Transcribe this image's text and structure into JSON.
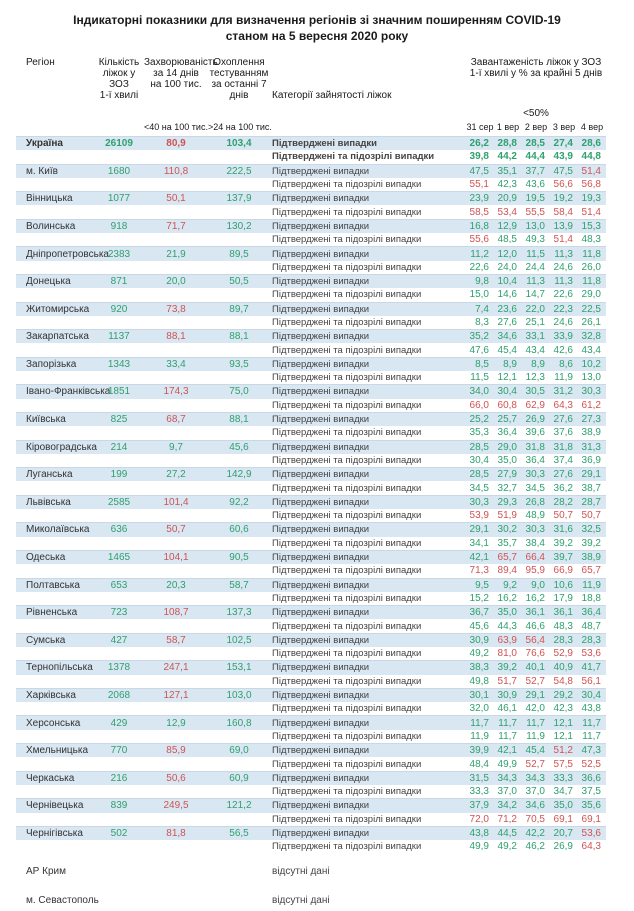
{
  "title": {
    "line1": "Індикаторні показники для визначення регіонів зі значним поширенням COVID-19",
    "line2": "станом на 5 вересня 2020 року"
  },
  "columns": {
    "region": "Регіон",
    "beds": "Кількість\nліжок у ЗОЗ\n1-ї хвилі",
    "incidence": "Захворюваність\nза 14 днів\nна 100 тис.",
    "testing": "Охоплення\nтестуванням\nза останні 7 днів",
    "category": "Категорії зайнятості ліжок",
    "occupancy": "Завантаженість ліжок у ЗОЗ\n1-ї хвилі у % за крайні 5 днів",
    "occupancy_threshold": "<50%",
    "incidence_threshold": "<40 на 100 тис.",
    "testing_threshold": ">24 на 100 тис."
  },
  "dates": [
    "31 сер",
    "1 вер",
    "2 вер",
    "3 вер",
    "4 вер"
  ],
  "category_labels": {
    "confirmed": "Підтверджені випадки",
    "confirmed_suspected": "Підтверджені та підозрілі випадки",
    "no_data": "відсутні дані"
  },
  "colors": {
    "good_green": "#2fa06e",
    "bad_red": "#cf5353",
    "row_blue": "#d9e7f2"
  },
  "regions": [
    {
      "name": "Україна",
      "bold": true,
      "beds": "26109",
      "inc": "80,9",
      "inc_c": "r",
      "test": "103,4",
      "c": [
        "26,2",
        "28,8",
        "28,5",
        "27,4",
        "28,6"
      ],
      "cc": "ggggg",
      "s": [
        "39,8",
        "44,2",
        "44,4",
        "43,9",
        "44,8"
      ],
      "sc": "ggggg"
    },
    {
      "name": "м. Київ",
      "beds": "1680",
      "inc": "110,8",
      "inc_c": "r",
      "test": "222,5",
      "c": [
        "47,5",
        "35,1",
        "37,7",
        "47,5",
        "51,4"
      ],
      "cc": "ggggr",
      "s": [
        "55,1",
        "42,3",
        "43,6",
        "56,6",
        "56,8"
      ],
      "sc": "rggrr"
    },
    {
      "name": "Вінницька",
      "beds": "1077",
      "inc": "50,1",
      "inc_c": "r",
      "test": "137,9",
      "c": [
        "23,9",
        "20,9",
        "19,5",
        "19,2",
        "19,3"
      ],
      "cc": "ggggg",
      "s": [
        "58,5",
        "53,4",
        "55,5",
        "58,4",
        "51,4"
      ],
      "sc": "rrrrr"
    },
    {
      "name": "Волинська",
      "beds": "918",
      "inc": "71,7",
      "inc_c": "r",
      "test": "130,2",
      "c": [
        "16,8",
        "12,9",
        "13,0",
        "13,9",
        "15,3"
      ],
      "cc": "ggggg",
      "s": [
        "55,6",
        "48,5",
        "49,3",
        "51,4",
        "48,3"
      ],
      "sc": "rggrg"
    },
    {
      "name": "Дніпропетровська",
      "beds": "2383",
      "inc": "21,9",
      "inc_c": "g",
      "test": "89,5",
      "c": [
        "11,2",
        "12,0",
        "11,5",
        "11,3",
        "11,8"
      ],
      "cc": "ggggg",
      "s": [
        "22,6",
        "24,0",
        "24,4",
        "24,6",
        "26,0"
      ],
      "sc": "ggggg"
    },
    {
      "name": "Донецька",
      "beds": "871",
      "inc": "20,0",
      "inc_c": "g",
      "test": "50,5",
      "c": [
        "9,8",
        "10,4",
        "11,3",
        "11,3",
        "11,8"
      ],
      "cc": "ggggg",
      "s": [
        "15,0",
        "14,6",
        "14,7",
        "22,6",
        "29,0"
      ],
      "sc": "ggggg"
    },
    {
      "name": "Житомирська",
      "beds": "920",
      "inc": "73,8",
      "inc_c": "r",
      "test": "89,7",
      "c": [
        "7,4",
        "23,6",
        "22,0",
        "22,3",
        "22,5"
      ],
      "cc": "ggggg",
      "s": [
        "8,3",
        "27,6",
        "25,1",
        "24,6",
        "26,1"
      ],
      "sc": "ggggg"
    },
    {
      "name": "Закарпатська",
      "beds": "1137",
      "inc": "88,1",
      "inc_c": "r",
      "test": "88,1",
      "c": [
        "35,2",
        "34,6",
        "33,1",
        "33,9",
        "32,8"
      ],
      "cc": "ggggg",
      "s": [
        "47,6",
        "45,4",
        "43,4",
        "42,6",
        "43,4"
      ],
      "sc": "ggggg"
    },
    {
      "name": "Запорізька",
      "beds": "1343",
      "inc": "33,4",
      "inc_c": "g",
      "test": "93,5",
      "c": [
        "8,5",
        "8,9",
        "8,9",
        "8,6",
        "10,2"
      ],
      "cc": "ggggg",
      "s": [
        "11,5",
        "12,1",
        "12,3",
        "11,9",
        "13,0"
      ],
      "sc": "ggggg"
    },
    {
      "name": "Івано-Франківська",
      "beds": "1851",
      "inc": "174,3",
      "inc_c": "r",
      "test": "75,0",
      "c": [
        "34,0",
        "30,4",
        "30,5",
        "31,2",
        "30,3"
      ],
      "cc": "ggggg",
      "s": [
        "66,0",
        "60,8",
        "62,9",
        "64,3",
        "61,2"
      ],
      "sc": "rrrrr"
    },
    {
      "name": "Київська",
      "beds": "825",
      "inc": "68,7",
      "inc_c": "r",
      "test": "88,1",
      "c": [
        "25,2",
        "25,7",
        "26,9",
        "27,6",
        "27,3"
      ],
      "cc": "ggggg",
      "s": [
        "35,3",
        "36,4",
        "39,6",
        "37,6",
        "38,9"
      ],
      "sc": "ggggg"
    },
    {
      "name": "Кіровоградська",
      "beds": "214",
      "inc": "9,7",
      "inc_c": "g",
      "test": "45,6",
      "c": [
        "28,5",
        "29,0",
        "31,8",
        "31,8",
        "31,3"
      ],
      "cc": "ggggg",
      "s": [
        "30,4",
        "35,0",
        "36,4",
        "37,4",
        "36,9"
      ],
      "sc": "ggggg"
    },
    {
      "name": "Луганська",
      "beds": "199",
      "inc": "27,2",
      "inc_c": "g",
      "test": "142,9",
      "c": [
        "28,5",
        "27,9",
        "30,3",
        "27,6",
        "29,1"
      ],
      "cc": "ggggg",
      "s": [
        "34,5",
        "32,7",
        "34,5",
        "36,2",
        "38,7"
      ],
      "sc": "ggggg"
    },
    {
      "name": "Львівська",
      "beds": "2585",
      "inc": "101,4",
      "inc_c": "r",
      "test": "92,2",
      "c": [
        "30,3",
        "29,3",
        "26,8",
        "28,2",
        "28,7"
      ],
      "cc": "ggggg",
      "s": [
        "53,9",
        "51,9",
        "48,9",
        "50,7",
        "50,7"
      ],
      "sc": "rrgrr"
    },
    {
      "name": "Миколаївська",
      "beds": "636",
      "inc": "50,7",
      "inc_c": "r",
      "test": "60,6",
      "c": [
        "29,1",
        "30,2",
        "30,3",
        "31,6",
        "32,5"
      ],
      "cc": "ggggg",
      "s": [
        "34,1",
        "35,7",
        "38,4",
        "39,2",
        "39,2"
      ],
      "sc": "ggggg"
    },
    {
      "name": "Одеська",
      "beds": "1465",
      "inc": "104,1",
      "inc_c": "r",
      "test": "90,5",
      "c": [
        "42,1",
        "65,7",
        "66,4",
        "39,7",
        "38,9"
      ],
      "cc": "grrgg",
      "s": [
        "71,3",
        "89,4",
        "95,9",
        "66,9",
        "65,7"
      ],
      "sc": "rrrrr"
    },
    {
      "name": "Полтавська",
      "beds": "653",
      "inc": "20,3",
      "inc_c": "g",
      "test": "58,7",
      "c": [
        "9,5",
        "9,2",
        "9,0",
        "10,6",
        "11,9"
      ],
      "cc": "ggggg",
      "s": [
        "15,2",
        "16,2",
        "16,2",
        "17,9",
        "18,8"
      ],
      "sc": "ggggg"
    },
    {
      "name": "Рівненська",
      "beds": "723",
      "inc": "108,7",
      "inc_c": "r",
      "test": "137,3",
      "c": [
        "36,7",
        "35,0",
        "36,1",
        "36,1",
        "36,4"
      ],
      "cc": "ggggg",
      "s": [
        "45,6",
        "44,3",
        "46,6",
        "48,3",
        "48,7"
      ],
      "sc": "ggggg"
    },
    {
      "name": "Сумська",
      "beds": "427",
      "inc": "58,7",
      "inc_c": "r",
      "test": "102,5",
      "c": [
        "30,9",
        "63,9",
        "56,4",
        "28,3",
        "28,3"
      ],
      "cc": "grrgg",
      "s": [
        "49,2",
        "81,0",
        "76,6",
        "52,9",
        "53,6"
      ],
      "sc": "grrrr"
    },
    {
      "name": "Тернопільська",
      "beds": "1378",
      "inc": "247,1",
      "inc_c": "r",
      "test": "153,1",
      "c": [
        "38,3",
        "39,2",
        "40,1",
        "40,9",
        "41,7"
      ],
      "cc": "ggggg",
      "s": [
        "49,8",
        "51,7",
        "52,7",
        "54,8",
        "56,1"
      ],
      "sc": "grrrr"
    },
    {
      "name": "Харківська",
      "beds": "2068",
      "inc": "127,1",
      "inc_c": "r",
      "test": "103,0",
      "c": [
        "30,1",
        "30,9",
        "29,1",
        "29,2",
        "30,4"
      ],
      "cc": "ggggg",
      "s": [
        "32,0",
        "46,1",
        "42,0",
        "42,3",
        "43,8"
      ],
      "sc": "ggggg"
    },
    {
      "name": "Херсонська",
      "beds": "429",
      "inc": "12,9",
      "inc_c": "g",
      "test": "160,8",
      "c": [
        "11,7",
        "11,7",
        "11,7",
        "12,1",
        "11,7"
      ],
      "cc": "ggggg",
      "s": [
        "11,9",
        "11,7",
        "11,9",
        "12,1",
        "11,7"
      ],
      "sc": "ggggg"
    },
    {
      "name": "Хмельницька",
      "beds": "770",
      "inc": "85,9",
      "inc_c": "r",
      "test": "69,0",
      "c": [
        "39,9",
        "42,1",
        "45,4",
        "51,2",
        "47,3"
      ],
      "cc": "gggrg",
      "s": [
        "48,4",
        "49,9",
        "52,7",
        "57,5",
        "52,5"
      ],
      "sc": "ggrrr"
    },
    {
      "name": "Черкаська",
      "beds": "216",
      "inc": "50,6",
      "inc_c": "r",
      "test": "60,9",
      "c": [
        "31,5",
        "34,3",
        "34,3",
        "33,3",
        "36,6"
      ],
      "cc": "ggggg",
      "s": [
        "33,3",
        "37,0",
        "37,0",
        "34,7",
        "37,5"
      ],
      "sc": "ggggg"
    },
    {
      "name": "Чернівецька",
      "beds": "839",
      "inc": "249,5",
      "inc_c": "r",
      "test": "121,2",
      "c": [
        "37,9",
        "34,2",
        "34,6",
        "35,0",
        "35,6"
      ],
      "cc": "ggggg",
      "s": [
        "72,0",
        "71,2",
        "70,5",
        "69,1",
        "69,1"
      ],
      "sc": "rrrrr"
    },
    {
      "name": "Чернігівська",
      "beds": "502",
      "inc": "81,8",
      "inc_c": "r",
      "test": "56,5",
      "c": [
        "43,8",
        "44,5",
        "42,2",
        "20,7",
        "53,6"
      ],
      "cc": "ggggr",
      "s": [
        "49,9",
        "49,2",
        "46,2",
        "26,9",
        "64,3"
      ],
      "sc": "ggggr"
    },
    {
      "name": "АР Крим",
      "nodata": true
    },
    {
      "name": "м. Севастополь",
      "nodata": true
    }
  ]
}
